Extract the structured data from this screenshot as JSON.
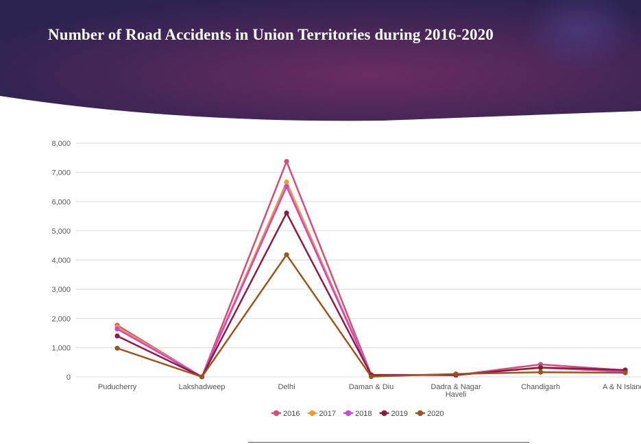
{
  "colors": {
    "banner_dark": "#2e2350",
    "banner_mid": "#6b2c62",
    "banner_accent": "#4b3a7e",
    "gridline": "#d9d9d9",
    "tick_text": "#555555"
  },
  "chart_data": {
    "type": "line",
    "title": "Number of Road Accidents in Union Territories during 2016-2020",
    "categories": [
      "Puducherry",
      "Lakshadweep",
      "Delhi",
      "Daman & Diu",
      "Dadra & Nagar Haveli",
      "Chandigarh",
      "A & N Islands"
    ],
    "category_labels": [
      [
        "Puducherry"
      ],
      [
        "Lakshadweep"
      ],
      [
        "Delhi"
      ],
      [
        "Daman & Diu"
      ],
      [
        "Dadra & Nagar",
        "Haveli"
      ],
      [
        "Chandigarh"
      ],
      [
        "A & N Islands"
      ]
    ],
    "ylim": [
      0,
      8000
    ],
    "yticks": [
      0,
      1000,
      2000,
      3000,
      4000,
      5000,
      6000,
      7000,
      8000
    ],
    "ytick_labels": [
      "0",
      "1,000",
      "2,000",
      "3,000",
      "4,000",
      "5,000",
      "6,000",
      "7,000",
      "8,000"
    ],
    "grid": true,
    "legend_position": "bottom",
    "series": [
      {
        "name": "2016",
        "color": "#d64a7c",
        "values": [
          1766,
          1,
          7375,
          71,
          59,
          426,
          224
        ]
      },
      {
        "name": "2017",
        "color": "#ec9a3a",
        "values": [
          1710,
          1,
          6673,
          64,
          65,
          307,
          198
        ]
      },
      {
        "name": "2018",
        "color": "#cb46d4",
        "values": [
          1640,
          1,
          6515,
          55,
          75,
          316,
          177
        ]
      },
      {
        "name": "2019",
        "color": "#8c1a45",
        "values": [
          1400,
          0,
          5610,
          65,
          60,
          320,
          236
        ]
      },
      {
        "name": "2020",
        "color": "#9a561a",
        "values": [
          980,
          0,
          4180,
          8,
          100,
          159,
          139
        ]
      }
    ]
  }
}
